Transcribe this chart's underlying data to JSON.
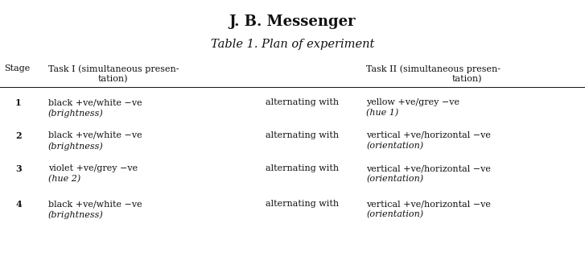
{
  "title_line1": "J. B. Messenger",
  "title_line2": "Table 1. Plan of experiment",
  "header": {
    "stage": "Stage",
    "task1_line1": "Task I (simultaneous presen-",
    "task1_line2": "tation)",
    "task2_line1": "Task II (simultaneous presen-",
    "task2_line2": "tation)"
  },
  "rows": [
    {
      "stage": "1",
      "task1_line1": "black +ve/white −ve",
      "task1_line2": "(brightness)",
      "middle": "alternating with",
      "task2_line1": "yellow +ve/grey −ve",
      "task2_line2": "(hue 1)"
    },
    {
      "stage": "2",
      "task1_line1": "black +ve/white −ve",
      "task1_line2": "(brightness)",
      "middle": "alternating with",
      "task2_line1": "vertical +ve/horizontal −ve",
      "task2_line2": "(orientation)"
    },
    {
      "stage": "3",
      "task1_line1": "violet +ve/grey −ve",
      "task1_line2": "(hue 2)",
      "middle": "alternating with",
      "task2_line1": "vertical +ve/horizontal −ve",
      "task2_line2": "(orientation)"
    },
    {
      "stage": "4",
      "task1_line1": "black +ve/white −ve",
      "task1_line2": "(brightness)",
      "middle": "alternating with",
      "task2_line1": "vertical +ve/horizontal −ve",
      "task2_line2": "(orientation)"
    }
  ],
  "bg_color": "#ffffff",
  "text_color": "#111111",
  "figsize": [
    7.27,
    3.24
  ],
  "dpi": 100
}
